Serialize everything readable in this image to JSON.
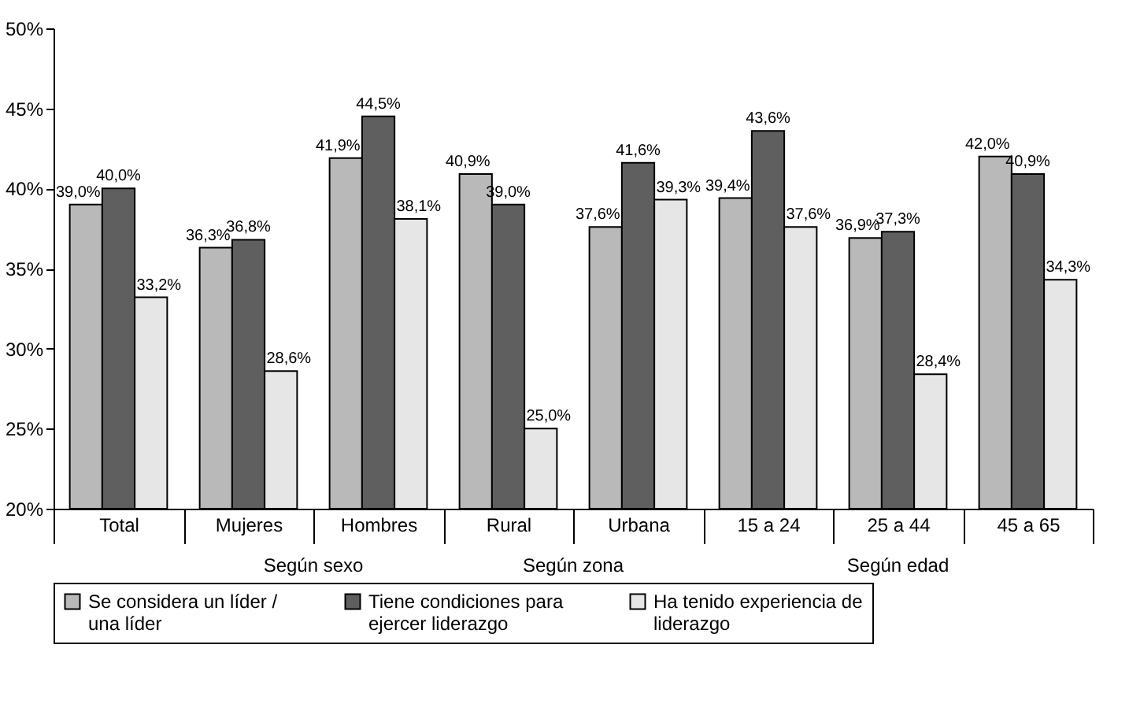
{
  "chart_data": {
    "type": "bar",
    "categories": [
      "Total",
      "Mujeres",
      "Hombres",
      "Rural",
      "Urbana",
      "15 a 24",
      "25 a 44",
      "45 a 65"
    ],
    "series": [
      {
        "name": "Se considera un líder / una líder",
        "color": "#b9b9b9",
        "values": [
          39.0,
          36.3,
          41.9,
          40.9,
          37.6,
          39.4,
          36.9,
          42.0
        ],
        "value_labels": [
          "39,0%",
          "36,3%",
          "41,9%",
          "40,9%",
          "37,6%",
          "39,4%",
          "36,9%",
          "42,0%"
        ]
      },
      {
        "name": "Tiene condiciones para ejercer liderazgo",
        "color": "#5f5f5f",
        "values": [
          40.0,
          36.8,
          44.5,
          39.0,
          41.6,
          43.6,
          37.3,
          40.9
        ],
        "value_labels": [
          "40,0%",
          "36,8%",
          "44,5%",
          "39,0%",
          "41,6%",
          "43,6%",
          "37,3%",
          "40,9%"
        ]
      },
      {
        "name": "Ha tenido experiencia de liderazgo",
        "color": "#e6e6e6",
        "values": [
          33.2,
          28.6,
          38.1,
          25.0,
          39.3,
          37.6,
          28.4,
          34.3
        ],
        "value_labels": [
          "33,2%",
          "28,6%",
          "38,1%",
          "25,0%",
          "39,3%",
          "37,6%",
          "28,4%",
          "34,3%"
        ]
      }
    ],
    "ylim": [
      20,
      50
    ],
    "yticks": [
      {
        "value": 20,
        "label": "20%"
      },
      {
        "value": 25,
        "label": "25%"
      },
      {
        "value": 30,
        "label": "30%"
      },
      {
        "value": 35,
        "label": "35%"
      },
      {
        "value": 40,
        "label": "40%"
      },
      {
        "value": 45,
        "label": "45%"
      },
      {
        "value": 50,
        "label": "50%"
      }
    ],
    "grid": false,
    "legend": "bottom",
    "annotations": [
      "Según sexo",
      "Según zona",
      "Según edad"
    ]
  }
}
